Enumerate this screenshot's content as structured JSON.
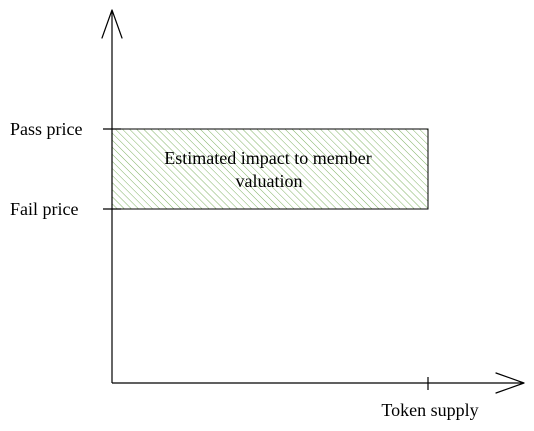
{
  "diagram": {
    "y_axis_labels": {
      "pass_price": "Pass price",
      "fail_price": "Fail price"
    },
    "x_axis_label": "Token supply",
    "region": {
      "label_line1": "Estimated impact to member",
      "label_line2": "valuation",
      "hatch_color": "#82b366",
      "fill_color": "#d5e8d4"
    }
  }
}
